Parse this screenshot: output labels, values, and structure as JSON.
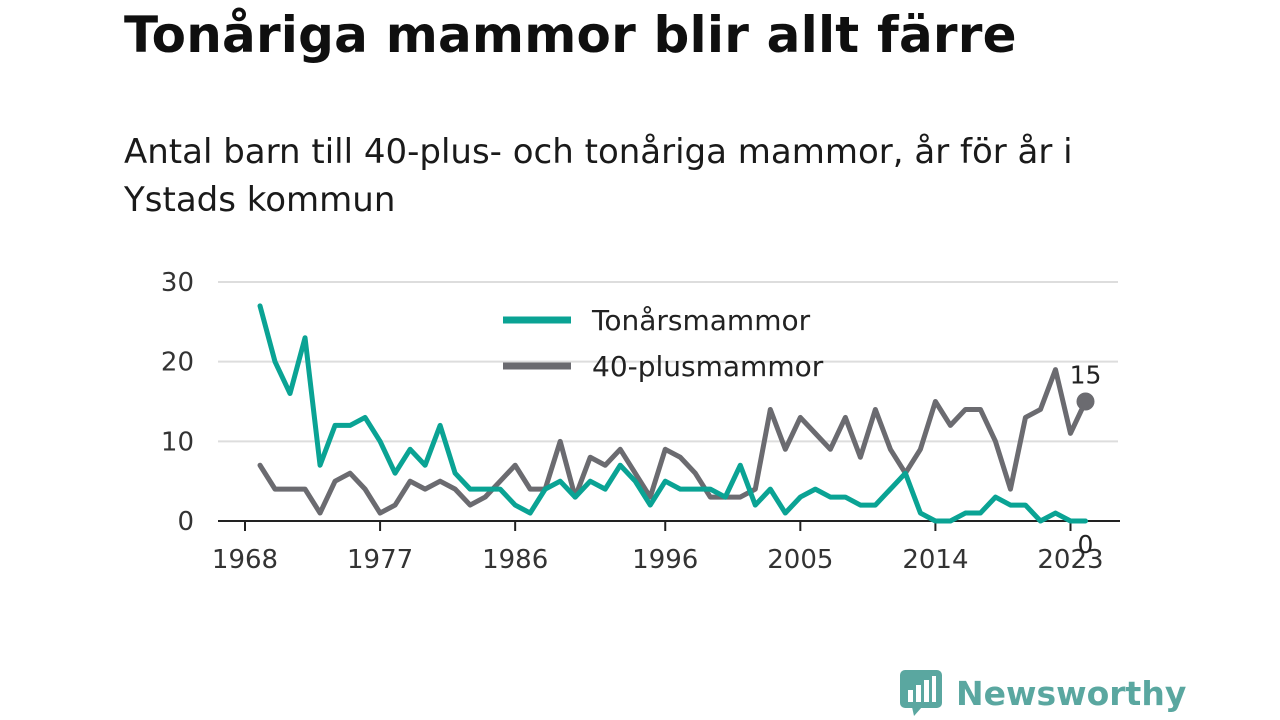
{
  "title": "Tonåriga mammor blir allt färre",
  "subtitle": "Antal barn till 40-plus- och tonåriga mammor, år för år i Ystads kommun",
  "brand": {
    "name": "Newsworthy"
  },
  "colors": {
    "teen": "#0aa394",
    "forty": "#6b6b70",
    "grid": "#dddddd",
    "axis": "#222222",
    "brand": "#5aa7a0"
  },
  "chart_data": {
    "type": "line",
    "x": [
      1969,
      1970,
      1971,
      1972,
      1973,
      1974,
      1975,
      1976,
      1977,
      1978,
      1979,
      1980,
      1981,
      1982,
      1983,
      1984,
      1985,
      1986,
      1987,
      1988,
      1989,
      1990,
      1991,
      1992,
      1993,
      1994,
      1995,
      1996,
      1997,
      1998,
      1999,
      2000,
      2001,
      2002,
      2003,
      2004,
      2005,
      2006,
      2007,
      2008,
      2009,
      2010,
      2011,
      2012,
      2013,
      2014,
      2015,
      2016,
      2017,
      2018,
      2019,
      2020,
      2021,
      2022,
      2023,
      2024
    ],
    "series": [
      {
        "name": "Tonårsmammor",
        "values": [
          27,
          20,
          16,
          23,
          7,
          12,
          12,
          13,
          10,
          6,
          9,
          7,
          12,
          6,
          4,
          4,
          4,
          2,
          1,
          4,
          5,
          3,
          5,
          4,
          7,
          5,
          2,
          5,
          4,
          4,
          4,
          3,
          7,
          2,
          4,
          1,
          3,
          4,
          3,
          3,
          2,
          2,
          4,
          6,
          1,
          0,
          0,
          1,
          1,
          3,
          2,
          2,
          0,
          1,
          0,
          0
        ]
      },
      {
        "name": "40-plusmammor",
        "values": [
          7,
          4,
          4,
          4,
          1,
          5,
          6,
          4,
          1,
          2,
          5,
          4,
          5,
          4,
          2,
          3,
          5,
          7,
          4,
          4,
          10,
          3,
          8,
          7,
          9,
          6,
          3,
          9,
          8,
          6,
          3,
          3,
          3,
          4,
          14,
          9,
          13,
          11,
          9,
          13,
          8,
          14,
          9,
          6,
          9,
          15,
          12,
          14,
          14,
          10,
          4,
          13,
          14,
          19,
          11,
          15
        ]
      }
    ],
    "xticks": [
      "1968",
      "1977",
      "1986",
      "1996",
      "2005",
      "2014",
      "2023"
    ],
    "yticks": [
      "0",
      "10",
      "20",
      "30"
    ],
    "ylim": [
      0,
      30
    ],
    "grid": "horizontal",
    "legend_position": "top-center",
    "end_labels": {
      "Tonårsmammor": "0",
      "40-plusmammor": "15"
    }
  }
}
